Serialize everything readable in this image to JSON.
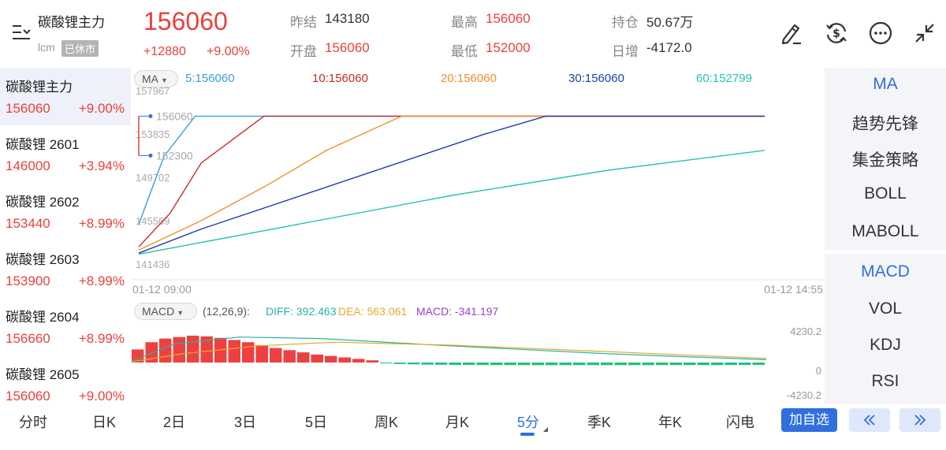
{
  "header": {
    "instrument_name": "碳酸锂主力",
    "instrument_code": "lcm",
    "status_badge": "已休市",
    "last_price": "156060",
    "change_abs": "+12880",
    "change_pct": "+9.00%",
    "stats": {
      "prev_settle_label": "昨结",
      "prev_settle_value": "143180",
      "open_label": "开盘",
      "open_value": "156060",
      "high_label": "最高",
      "high_value": "156060",
      "low_label": "最低",
      "low_value": "152000",
      "open_interest_label": "持仓",
      "open_interest_value": "50.67万",
      "daily_change_label": "日增",
      "daily_change_value": "-4172.0"
    },
    "icons": [
      "menu-filter-icon",
      "pen-icon",
      "dollar-refresh-icon",
      "more-icon",
      "collapse-icon"
    ]
  },
  "left_list": [
    {
      "name": "碳酸锂主力",
      "price": "156060",
      "pct": "+9.00%",
      "active": true
    },
    {
      "name": "碳酸锂 2601",
      "price": "146000",
      "pct": "+3.94%"
    },
    {
      "name": "碳酸锂 2602",
      "price": "153440",
      "pct": "+8.99%"
    },
    {
      "name": "碳酸锂 2603",
      "price": "153900",
      "pct": "+8.99%"
    },
    {
      "name": "碳酸锂 2604",
      "price": "156660",
      "pct": "+8.99%"
    },
    {
      "name": "碳酸锂 2605",
      "price": "156060",
      "pct": "+9.00%"
    }
  ],
  "ma_panel": {
    "selector_label": "MA",
    "legend": [
      {
        "text": "5:156060",
        "color": "#3aa0d8"
      },
      {
        "text": "10:156060",
        "color": "#c8292c"
      },
      {
        "text": "20:156060",
        "color": "#f0902a"
      },
      {
        "text": "30:156060",
        "color": "#1f3fa8"
      },
      {
        "text": "60:152799",
        "color": "#26c2b0"
      }
    ]
  },
  "macd_panel": {
    "selector_label": "MACD",
    "params": "(12,26,9):",
    "diff": "DIFF: 392.463",
    "dea": "DEA: 563.061",
    "macd": "MACD: -341.197",
    "diff_color": "#26b3a6",
    "dea_color": "#e6a92a",
    "macd_color": "#9b3fd4",
    "up_color": "#ee4040",
    "down_color": "#1ec27a"
  },
  "chart_data": [
    {
      "type": "line",
      "x_start_label": "01-12 09:00",
      "x_end_label": "01-12 14:55",
      "y_ticks": [
        "157967",
        "153835",
        "149702",
        "145569",
        "141436"
      ],
      "ylim": [
        141436,
        157967
      ],
      "price_tags": [
        {
          "label": "156060",
          "value": 156060
        },
        {
          "label": "152300",
          "value": 152300
        }
      ],
      "series": [
        {
          "name": "5",
          "color": "#3aa0d8",
          "points": [
            [
              0,
              145750
            ],
            [
              0.04,
              152200
            ],
            [
              0.09,
              156060
            ],
            [
              1,
              156060
            ]
          ]
        },
        {
          "name": "10",
          "color": "#c8292c",
          "points": [
            [
              0,
              143600
            ],
            [
              0.05,
              146800
            ],
            [
              0.1,
              151600
            ],
            [
              0.2,
              156060
            ],
            [
              1,
              156060
            ]
          ]
        },
        {
          "name": "20",
          "color": "#f0902a",
          "points": [
            [
              0,
              143300
            ],
            [
              0.1,
              146100
            ],
            [
              0.2,
              149300
            ],
            [
              0.3,
              152800
            ],
            [
              0.42,
              156060
            ],
            [
              1,
              156060
            ]
          ]
        },
        {
          "name": "30",
          "color": "#1f3fa8",
          "points": [
            [
              0,
              143000
            ],
            [
              0.1,
              145300
            ],
            [
              0.25,
              148300
            ],
            [
              0.4,
              151300
            ],
            [
              0.55,
              154300
            ],
            [
              0.65,
              156060
            ],
            [
              1,
              156060
            ]
          ]
        },
        {
          "name": "60",
          "color": "#26c2b0",
          "points": [
            [
              0,
              142900
            ],
            [
              0.25,
              145700
            ],
            [
              0.5,
              148500
            ],
            [
              0.75,
              150900
            ],
            [
              1,
              152799
            ]
          ]
        }
      ]
    },
    {
      "type": "bar",
      "y_ticks": [
        "4230.2",
        "0",
        "-4230.2"
      ],
      "ylim": [
        -4230.2,
        4230.2
      ],
      "histogram": [
        1800,
        2800,
        3300,
        3500,
        3700,
        3600,
        3400,
        3100,
        2800,
        2400,
        2000,
        1700,
        1400,
        1100,
        900,
        700,
        500,
        300,
        -100,
        -200,
        -250,
        -280,
        -300,
        -320,
        -330,
        -340,
        -350,
        -350,
        -355,
        -360,
        -360,
        -360,
        -360,
        -360,
        -360,
        -360,
        -355,
        -355,
        -350,
        -350,
        -350,
        -345,
        -345,
        -340,
        -340,
        -340
      ],
      "diff_line": [
        {
          "x": 0,
          "y": 200
        },
        {
          "x": 0.07,
          "y": 2600
        },
        {
          "x": 0.17,
          "y": 3500
        },
        {
          "x": 0.3,
          "y": 3300
        },
        {
          "x": 0.5,
          "y": 2300
        },
        {
          "x": 0.75,
          "y": 1200
        },
        {
          "x": 1,
          "y": 392
        }
      ],
      "dea_line": [
        {
          "x": 0,
          "y": 100
        },
        {
          "x": 0.08,
          "y": 1200
        },
        {
          "x": 0.2,
          "y": 2300
        },
        {
          "x": 0.32,
          "y": 2800
        },
        {
          "x": 0.5,
          "y": 2400
        },
        {
          "x": 0.75,
          "y": 1500
        },
        {
          "x": 1,
          "y": 563
        }
      ]
    }
  ],
  "right_panel": {
    "main_indicators": [
      "MA",
      "趋势先锋",
      "集金策略",
      "BOLL",
      "MABOLL"
    ],
    "sub_indicators": [
      "MACD",
      "VOL",
      "KDJ",
      "RSI"
    ]
  },
  "bottom_bar": {
    "tabs": [
      "分时",
      "日K",
      "2日",
      "3日",
      "5日",
      "周K",
      "月K",
      "5分",
      "季K",
      "年K",
      "闪电"
    ],
    "active_tab": "5分",
    "fav_label": "加自选",
    "prev_label": "«",
    "next_label": "»"
  }
}
